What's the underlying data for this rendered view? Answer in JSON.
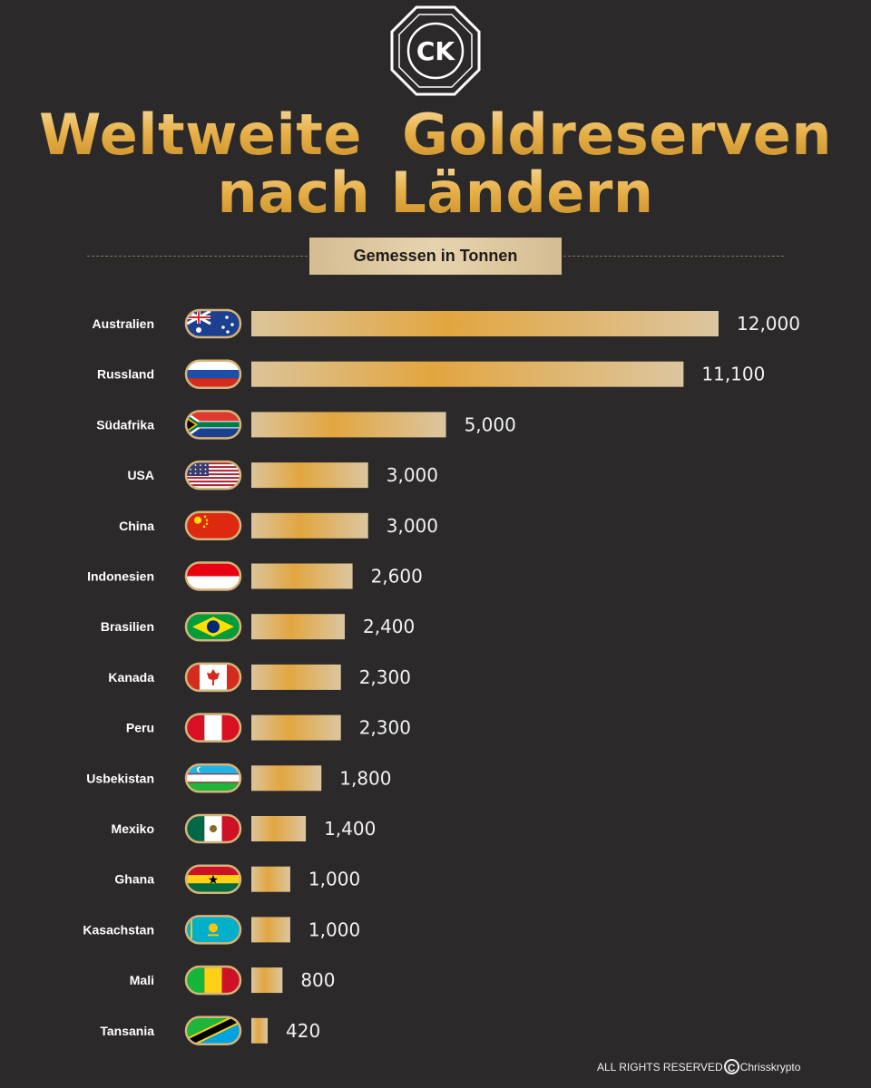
{
  "logo": {
    "text": "CK",
    "icon": "ck-octagon-logo"
  },
  "title_line1": "Weltweite  Goldreserven",
  "title_line2": "nach Ländern",
  "subtitle": "Gemessen in Tonnen",
  "footer": {
    "rights": "ALL RIGHTS RESERVED",
    "copyright_symbol": "C",
    "brand": "Chrisskrypto"
  },
  "colors": {
    "background": "#2b2929",
    "gold": "#e8b14a",
    "bar_light": "#dcc49a",
    "bar_dark": "#e2a640"
  },
  "chart_data": {
    "type": "bar",
    "orientation": "horizontal",
    "categories": [
      "Australien",
      "Russland",
      "Südafrika",
      "USA",
      "China",
      "Indonesien",
      "Brasilien",
      "Kanada",
      "Peru",
      "Usbekistan",
      "Mexiko",
      "Ghana",
      "Kasachstan",
      "Mali",
      "Tansania"
    ],
    "values": [
      12000,
      11100,
      5000,
      3000,
      3000,
      2600,
      2400,
      2300,
      2300,
      1800,
      1400,
      1000,
      1000,
      800,
      420
    ],
    "value_labels": [
      "12,000",
      "11,100",
      "5,000",
      "3,000",
      "3,000",
      "2,600",
      "2,400",
      "2,300",
      "2,300",
      "1,800",
      "1,400",
      "1,000",
      "1,000",
      "800",
      "420"
    ],
    "flags": [
      "australia-flag-icon",
      "russia-flag-icon",
      "south-africa-flag-icon",
      "usa-flag-icon",
      "china-flag-icon",
      "indonesia-flag-icon",
      "brazil-flag-icon",
      "canada-flag-icon",
      "peru-flag-icon",
      "uzbekistan-flag-icon",
      "mexico-flag-icon",
      "ghana-flag-icon",
      "kazakhstan-flag-icon",
      "mali-flag-icon",
      "tanzania-flag-icon"
    ],
    "title": "Weltweite  Goldreserven nach Ländern",
    "xlabel": "",
    "ylabel": "",
    "xlim": [
      0,
      12000
    ],
    "grid": false,
    "legend": "none"
  }
}
